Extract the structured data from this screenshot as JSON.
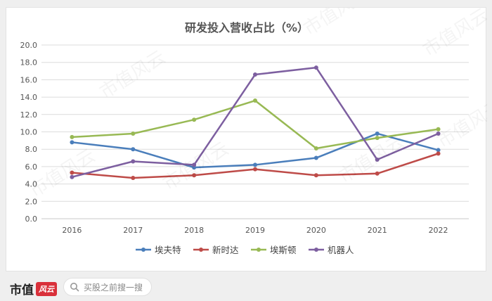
{
  "chart_data": {
    "type": "line",
    "title": "研发投入营收占比（%）",
    "categories": [
      "2016",
      "2017",
      "2018",
      "2019",
      "2020",
      "2021",
      "2022"
    ],
    "ylim": [
      0,
      20
    ],
    "yticks": [
      "0.0",
      "2.0",
      "4.0",
      "6.0",
      "8.0",
      "10.0",
      "12.0",
      "14.0",
      "16.0",
      "18.0",
      "20.0"
    ],
    "grid": true,
    "legend_position": "bottom",
    "series": [
      {
        "name": "埃夫特",
        "color": "#4a7ebb",
        "values": [
          8.8,
          8.0,
          5.9,
          6.2,
          7.0,
          9.8,
          7.9
        ]
      },
      {
        "name": "新时达",
        "color": "#be4b48",
        "values": [
          5.3,
          4.7,
          5.0,
          5.7,
          5.0,
          5.2,
          7.5
        ]
      },
      {
        "name": "埃斯顿",
        "color": "#98b954",
        "values": [
          9.4,
          9.8,
          11.4,
          13.6,
          8.1,
          9.3,
          10.3
        ]
      },
      {
        "name": "机器人",
        "color": "#7d5fa0",
        "values": [
          4.8,
          6.6,
          6.2,
          16.6,
          17.4,
          6.8,
          9.8
        ]
      }
    ]
  },
  "footer": {
    "brand_name": "市值",
    "brand_stamp": "风云",
    "search_placeholder": "买股之前搜一搜"
  },
  "watermark": "市值风云"
}
